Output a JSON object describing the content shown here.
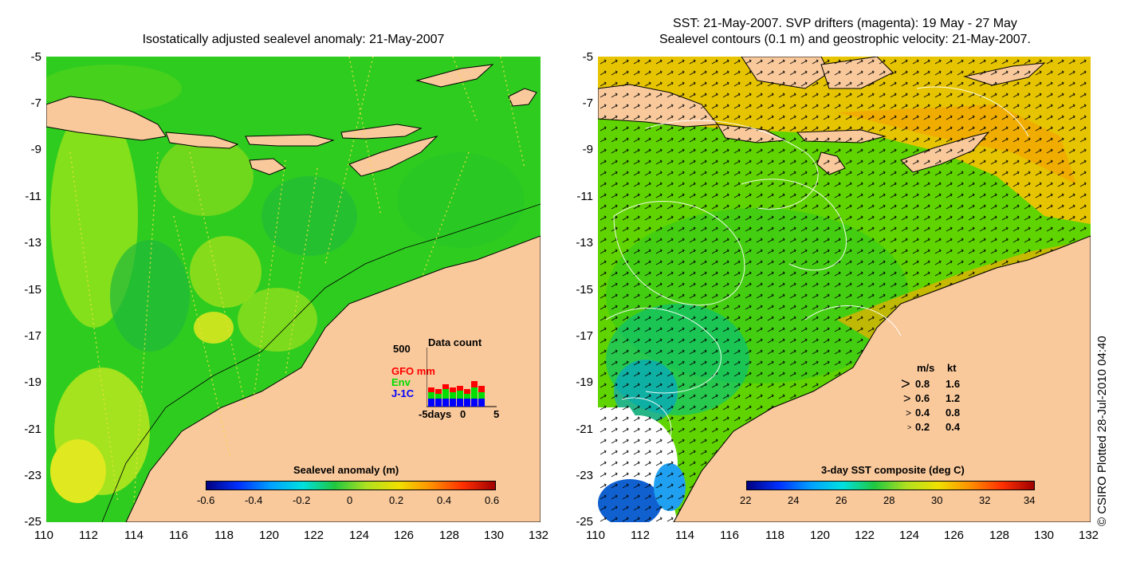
{
  "left_panel": {
    "title": "Isostatically adjusted sealevel anomaly: 21-May-2007",
    "x_ticks": [
      "110",
      "112",
      "114",
      "116",
      "118",
      "120",
      "122",
      "124",
      "126",
      "128",
      "130",
      "132"
    ],
    "y_ticks": [
      "-5",
      "-7",
      "-9",
      "-11",
      "-13",
      "-15",
      "-17",
      "-19",
      "-21",
      "-23",
      "-25"
    ],
    "colorbar": {
      "title": "Sealevel anomaly (m)",
      "ticks": [
        "-0.6",
        "-0.4",
        "-0.2",
        "0",
        "0.2",
        "0.4",
        "0.6"
      ]
    },
    "inset": {
      "title": "Data count",
      "ymax_label": "500",
      "series_labels": [
        {
          "name": "GFO mm",
          "color": "#ff0000"
        },
        {
          "name": "Env",
          "color": "#00dd00"
        },
        {
          "name": "J-1C",
          "color": "#0000ff"
        }
      ],
      "x_labels": [
        "-5days",
        "0",
        "5"
      ]
    }
  },
  "right_panel": {
    "title_line1": "SST: 21-May-2007. SVP drifters (magenta): 19 May - 27 May",
    "title_line2": "Sealevel contours (0.1 m) and geostrophic velocity: 21-May-2007.",
    "x_ticks": [
      "110",
      "112",
      "114",
      "116",
      "118",
      "120",
      "122",
      "124",
      "126",
      "128",
      "130",
      "132"
    ],
    "y_ticks": [
      "-5",
      "-7",
      "-9",
      "-11",
      "-13",
      "-15",
      "-17",
      "-19",
      "-21",
      "-23",
      "-25"
    ],
    "colorbar": {
      "title": "3-day SST composite (deg C)",
      "ticks": [
        "22",
        "24",
        "26",
        "28",
        "30",
        "32",
        "34"
      ]
    },
    "velocity_legend": {
      "header_ms": "m/s",
      "header_kt": "kt",
      "rows": [
        {
          "ms": "0.8",
          "kt": "1.6"
        },
        {
          "ms": "0.6",
          "kt": "1.2"
        },
        {
          "ms": "0.4",
          "kt": "0.8"
        },
        {
          "ms": "0.2",
          "kt": "0.4"
        }
      ]
    }
  },
  "credit": "© CSIRO Plotted 28-Jul-2010 04:40",
  "colors": {
    "land": "#f9c99c",
    "sla_base": "#22c81e",
    "sst_base": "#5fd400",
    "sst_warm": "#f2b400"
  }
}
